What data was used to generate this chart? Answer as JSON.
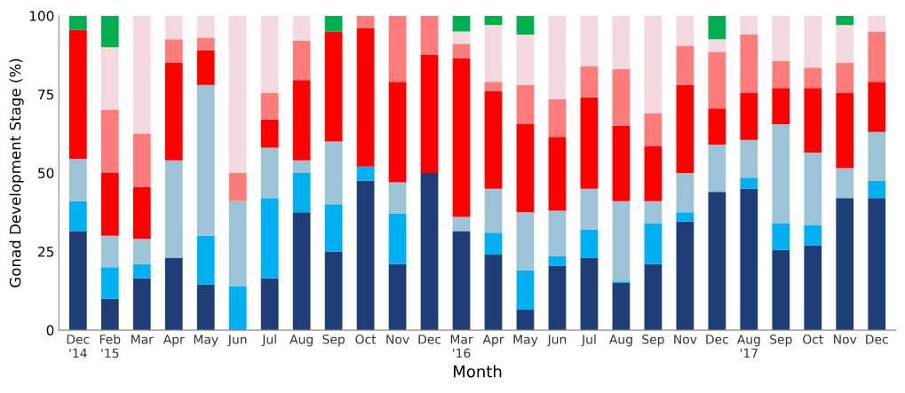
{
  "chart_data": {
    "type": "bar",
    "stacked": true,
    "xlabel": "Month",
    "ylabel": "Gonad Development Stage (%)",
    "categories": [
      "Dec\n'14",
      "Feb\n'15",
      "Mar",
      "Apr",
      "May",
      "Jun",
      "Jul",
      "Aug",
      "Sep",
      "Oct",
      "Nov",
      "Dec",
      "Mar\n'16",
      "Apr",
      "May",
      "Jun",
      "Jul",
      "Aug",
      "Sep",
      "Nov",
      "Dec",
      "Aug\n'17",
      "Sep",
      "Oct",
      "Nov",
      "Dec"
    ],
    "ylim": [
      0,
      100
    ],
    "yticks": [
      0,
      25,
      50,
      75,
      100
    ],
    "grid": false,
    "legend": false,
    "series": [
      {
        "color": "#1f3e78",
        "values": [
          31.5,
          10,
          16.5,
          23,
          14.5,
          0,
          16.5,
          37.5,
          25,
          47.5,
          21,
          50,
          31.5,
          24,
          6.5,
          20.5,
          23,
          15,
          21,
          34.5,
          44,
          45,
          25.5,
          27,
          42,
          42
        ]
      },
      {
        "color": "#00b0f0",
        "values": [
          9.5,
          10,
          4.5,
          0,
          15.5,
          14,
          25.5,
          12.5,
          15,
          4.5,
          16,
          0,
          0,
          7,
          12.5,
          3,
          9,
          0.5,
          13,
          3,
          0,
          3.5,
          8.5,
          6.5,
          0,
          5.5
        ]
      },
      {
        "color": "#9dc3d6",
        "values": [
          13.5,
          10,
          8,
          31,
          48,
          27,
          16,
          4,
          20,
          0,
          10,
          0,
          4.5,
          14,
          18.5,
          14.5,
          13,
          25.5,
          7,
          12.5,
          15,
          12,
          31.5,
          23,
          9.5,
          15.5
        ]
      },
      {
        "color": "#ff0000",
        "values": [
          41,
          20,
          16.5,
          31,
          11,
          0,
          9,
          25.5,
          35,
          44,
          32,
          37.5,
          50.5,
          31,
          28,
          23.5,
          29,
          24,
          17.5,
          28,
          11.5,
          15,
          11.5,
          20.5,
          24,
          16
        ]
      },
      {
        "color": "#ff7c7c",
        "values": [
          0,
          20,
          17,
          7.5,
          4,
          9,
          8.5,
          12.5,
          0,
          4,
          21,
          12.5,
          4.5,
          3,
          12.5,
          12,
          10,
          18,
          10.5,
          12.5,
          18,
          18.5,
          8.5,
          6.5,
          9.5,
          16
        ]
      },
      {
        "color": "#f4dadf",
        "values": [
          0,
          20,
          37.5,
          7.5,
          7,
          50,
          24.5,
          8,
          0,
          0,
          0,
          0,
          4,
          18,
          16,
          26.5,
          16,
          17,
          31,
          9.5,
          4,
          6,
          14.5,
          16.5,
          12,
          5
        ]
      },
      {
        "color": "#00b050",
        "values": [
          4.5,
          10,
          0,
          0,
          0,
          0,
          0,
          0,
          5,
          0,
          0,
          0,
          5,
          3,
          6,
          0,
          0,
          0,
          0,
          0,
          7.5,
          0,
          0,
          0,
          3,
          0
        ]
      }
    ]
  }
}
